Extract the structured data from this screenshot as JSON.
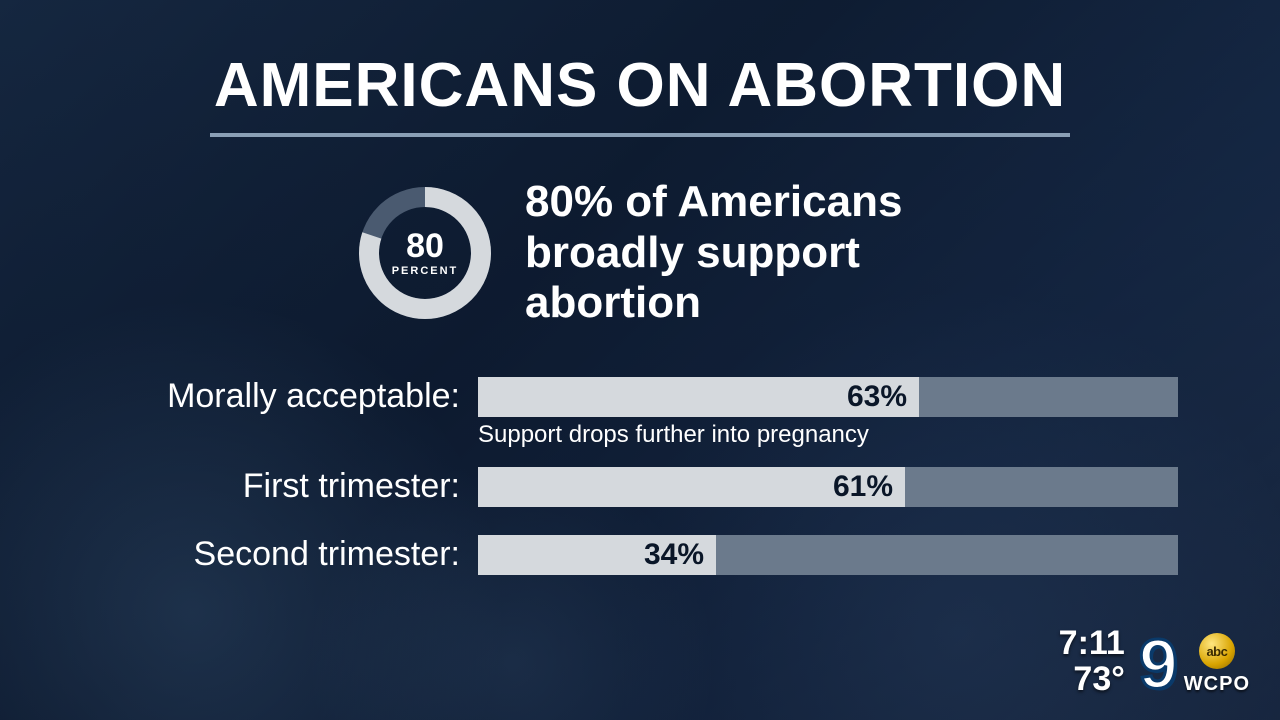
{
  "title": "AMERICANS ON ABORTION",
  "headline": {
    "donut_percent": 80,
    "donut_number": "80",
    "donut_unit": "PERCENT",
    "text": "80% of Americans broadly support abortion",
    "ring_fg_color": "#d5d9dd",
    "ring_bg_color": "#4a5a70",
    "ring_thickness": 20
  },
  "chart": {
    "type": "bar",
    "bar_bg_color": "#6b7a8c",
    "bar_fill_color": "#d5d9dd",
    "value_text_color": "#0a1628",
    "label_color": "#ffffff",
    "label_fontsize": 34,
    "value_fontsize": 30,
    "max_percent": 100,
    "bars": [
      {
        "label": "Morally acceptable:",
        "value": 63,
        "display": "63%",
        "note": "Support drops further into pregnancy"
      },
      {
        "label": "First trimester:",
        "value": 61,
        "display": "61%"
      },
      {
        "label": "Second trimester:",
        "value": 34,
        "display": "34%"
      }
    ]
  },
  "overlay": {
    "clock": "7:11",
    "temp": "73°",
    "channel_number": "9",
    "network_abbr": "abc",
    "station": "WCPO"
  },
  "colors": {
    "background_gradient_start": "#1a2f4a",
    "background_gradient_end": "#0f1f35",
    "title_color": "#ffffff",
    "underline_color": "#8a9fb5"
  }
}
